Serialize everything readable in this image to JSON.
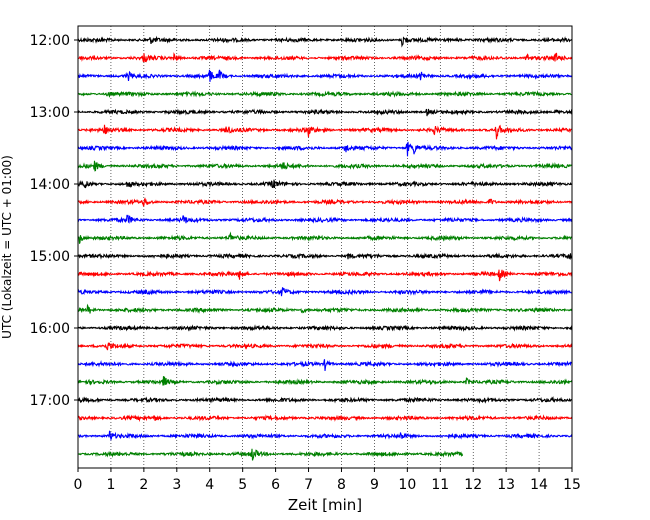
{
  "chart_data": {
    "type": "line",
    "title": "",
    "xlabel": "Zeit  [min]",
    "ylabel": "UTC (Lokalzeit = UTC + 01:00)",
    "xlim": [
      0,
      15
    ],
    "x_ticks": [
      "0",
      "1",
      "2",
      "3",
      "4",
      "5",
      "6",
      "7",
      "8",
      "9",
      "10",
      "11",
      "12",
      "13",
      "14",
      "15"
    ],
    "y_tick_labels": [
      "12:00",
      "13:00",
      "14:00",
      "15:00",
      "16:00",
      "17:00"
    ],
    "grid": "vertical dotted at each minute",
    "trace_interval_min": 15,
    "trace_colors": [
      "#000000",
      "#ff0000",
      "#0000ff",
      "#008000"
    ],
    "traces": [
      {
        "start": "12:00",
        "color": "#000000",
        "events": [
          [
            9.85,
            8
          ],
          [
            2.2,
            3
          ],
          [
            11.5,
            2
          ]
        ]
      },
      {
        "start": "12:15",
        "color": "#ff0000",
        "events": [
          [
            2.0,
            4
          ],
          [
            2.9,
            5
          ],
          [
            13.6,
            6
          ],
          [
            14.5,
            5
          ]
        ]
      },
      {
        "start": "12:30",
        "color": "#0000ff",
        "events": [
          [
            1.5,
            5
          ],
          [
            4.0,
            6
          ],
          [
            4.3,
            5
          ],
          [
            10.4,
            7
          ]
        ]
      },
      {
        "start": "12:45",
        "color": "#008000",
        "events": [
          [
            0.9,
            3
          ]
        ]
      },
      {
        "start": "13:00",
        "color": "#000000",
        "events": [
          [
            10.6,
            4
          ],
          [
            14.5,
            3
          ]
        ]
      },
      {
        "start": "13:15",
        "color": "#ff0000",
        "events": [
          [
            0.8,
            4
          ],
          [
            4.5,
            6
          ],
          [
            7.0,
            6
          ],
          [
            10.8,
            4
          ],
          [
            12.7,
            9
          ]
        ]
      },
      {
        "start": "13:30",
        "color": "#0000ff",
        "events": [
          [
            8.1,
            6
          ],
          [
            10.0,
            8
          ],
          [
            10.2,
            5
          ]
        ]
      },
      {
        "start": "13:45",
        "color": "#008000",
        "events": [
          [
            0.5,
            5
          ],
          [
            6.2,
            4
          ]
        ]
      },
      {
        "start": "14:00",
        "color": "#000000",
        "events": [
          [
            0.2,
            4
          ],
          [
            1.5,
            4
          ],
          [
            5.9,
            5
          ]
        ]
      },
      {
        "start": "14:15",
        "color": "#ff0000",
        "events": [
          [
            2.0,
            5
          ],
          [
            12.5,
            4
          ]
        ]
      },
      {
        "start": "14:30",
        "color": "#0000ff",
        "events": [
          [
            1.5,
            5
          ],
          [
            3.2,
            4
          ]
        ]
      },
      {
        "start": "14:45",
        "color": "#008000",
        "events": [
          [
            0.05,
            6
          ],
          [
            4.6,
            5
          ]
        ]
      },
      {
        "start": "15:00",
        "color": "#000000",
        "events": [
          [
            8.2,
            3
          ],
          [
            14.9,
            4
          ]
        ]
      },
      {
        "start": "15:15",
        "color": "#ff0000",
        "events": [
          [
            4.9,
            6
          ],
          [
            12.8,
            7
          ]
        ]
      },
      {
        "start": "15:30",
        "color": "#0000ff",
        "events": [
          [
            6.2,
            5
          ]
        ]
      },
      {
        "start": "15:45",
        "color": "#008000",
        "events": [
          [
            0.3,
            5
          ],
          [
            6.8,
            3
          ]
        ]
      },
      {
        "start": "16:00",
        "color": "#000000",
        "events": []
      },
      {
        "start": "16:15",
        "color": "#ff0000",
        "events": [
          [
            0.9,
            4
          ]
        ]
      },
      {
        "start": "16:30",
        "color": "#0000ff",
        "events": [
          [
            7.5,
            6
          ]
        ]
      },
      {
        "start": "16:45",
        "color": "#008000",
        "events": [
          [
            2.6,
            5
          ],
          [
            11.8,
            4
          ]
        ]
      },
      {
        "start": "17:00",
        "color": "#000000",
        "events": []
      },
      {
        "start": "17:15",
        "color": "#ff0000",
        "events": [
          [
            2.3,
            3
          ]
        ]
      },
      {
        "start": "17:30",
        "color": "#0000ff",
        "events": [
          [
            0.95,
            6
          ],
          [
            9.8,
            3
          ]
        ]
      },
      {
        "start": "17:45",
        "color": "#008000",
        "end": 11.7,
        "events": [
          [
            5.3,
            7
          ]
        ]
      }
    ]
  }
}
